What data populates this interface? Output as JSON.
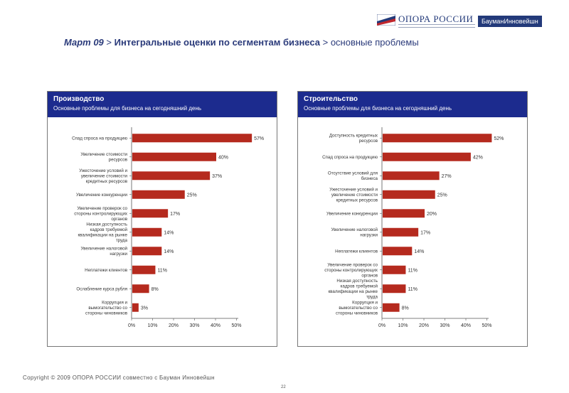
{
  "header": {
    "logo_text": "ОПОРА РОССИИ",
    "partner_label": "БауманИнновейшн",
    "title_month": "Март 09",
    "title_sep1": " > ",
    "title_main": "Интегральные оценки по сегментам бизнеса",
    "title_sep2": " > ",
    "title_sub": "основные проблемы"
  },
  "colors": {
    "bar": "#b52a1e",
    "panel_header": "#1c2b8e",
    "title": "#2a3a7a"
  },
  "chart_data": [
    {
      "type": "bar",
      "orientation": "horizontal",
      "title": "Производство",
      "subtitle": "Основные проблемы для бизнеса на сегодняшний день",
      "categories": [
        "Спад спроса на продукцию",
        "Увеличение стоимости ресурсов",
        "Ужесточение условий и увеличение стоимости кредитных ресурсов",
        "Увеличение конкуренции",
        "Увеличение проверок со стороны контролирующих органов",
        "Низкая доступность кадров требуемой квалификации на рынке труда",
        "Увеличение налоговой нагрузки",
        "Неплатежи клиентов",
        "Ослабление курса рубля",
        "Коррупция и вымогательство со стороны чиновников"
      ],
      "values": [
        57,
        40,
        37,
        25,
        17,
        14,
        14,
        11,
        8,
        3
      ],
      "value_labels": [
        "57%",
        "40%",
        "37%",
        "25%",
        "17%",
        "14%",
        "14%",
        "11%",
        "8%",
        "3%"
      ],
      "xlim": [
        0,
        60
      ],
      "x_ticks": [
        "0%",
        "10%",
        "20%",
        "30%",
        "40%",
        "50%"
      ],
      "grid": false
    },
    {
      "type": "bar",
      "orientation": "horizontal",
      "title": "Строительство",
      "subtitle": "Основные проблемы для бизнеса на сегодняшний день",
      "categories": [
        "Доступность кредитных ресурсов",
        "Спад спроса на продукцию",
        "Отсутствие условий для бизнеса",
        "Ужесточение условий и увеличение стоимости кредитных ресурсов",
        "Увеличение конкуренции",
        "Увеличение налоговой нагрузки",
        "Неплатежи клиентов",
        "Увеличение проверок со стороны контролирующих органов",
        "Низкая доступность кадров требуемой квалификации на рынке труда",
        "Коррупция и вымогательство со стороны чиновников"
      ],
      "values": [
        52,
        42,
        27,
        25,
        20,
        17,
        14,
        11,
        11,
        8
      ],
      "value_labels": [
        "52%",
        "42%",
        "27%",
        "25%",
        "20%",
        "17%",
        "14%",
        "11%",
        "11%",
        "8%"
      ],
      "xlim": [
        0,
        55
      ],
      "x_ticks": [
        "0%",
        "10%",
        "20%",
        "30%",
        "40%",
        "50%"
      ],
      "grid": false
    }
  ],
  "footer": {
    "copyright": "Copyright © 2009 ОПОРА РОССИИ совместно с Бауман Инновейшн",
    "page_number": "22"
  }
}
